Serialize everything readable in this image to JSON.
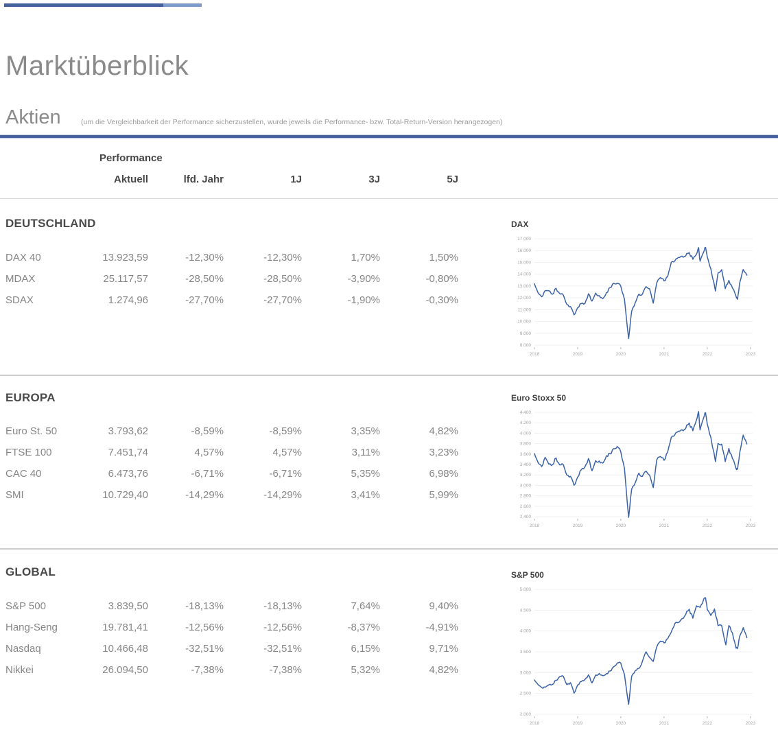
{
  "header": {
    "title": "Marktüberblick",
    "section_title": "Aktien",
    "section_note": "(um die Vergleichbarkeit der Performance sicherzustellen, wurde jeweils die Performance- bzw. Total-Return-Version herangezogen)"
  },
  "table": {
    "group_label": "Performance",
    "columns": [
      "Aktuell",
      "lfd. Jahr",
      "1J",
      "3J",
      "5J"
    ],
    "sections": [
      {
        "title": "DEUTSCHLAND",
        "rows": [
          {
            "name": "DAX 40",
            "values": [
              "13.923,59",
              "-12,30%",
              "-12,30%",
              "1,70%",
              "1,50%"
            ]
          },
          {
            "name": "MDAX",
            "values": [
              "25.117,57",
              "-28,50%",
              "-28,50%",
              "-3,90%",
              "-0,80%"
            ]
          },
          {
            "name": "SDAX",
            "values": [
              "1.274,96",
              "-27,70%",
              "-27,70%",
              "-1,90%",
              "-0,30%"
            ]
          }
        ]
      },
      {
        "title": "EUROPA",
        "rows": [
          {
            "name": "Euro St. 50",
            "values": [
              "3.793,62",
              "-8,59%",
              "-8,59%",
              "3,35%",
              "4,82%"
            ]
          },
          {
            "name": "FTSE 100",
            "values": [
              "7.451,74",
              "4,57%",
              "4,57%",
              "3,11%",
              "3,23%"
            ]
          },
          {
            "name": "CAC 40",
            "values": [
              "6.473,76",
              "-6,71%",
              "-6,71%",
              "5,35%",
              "6,98%"
            ]
          },
          {
            "name": "SMI",
            "values": [
              "10.729,40",
              "-14,29%",
              "-14,29%",
              "3,41%",
              "5,99%"
            ]
          }
        ]
      },
      {
        "title": "GLOBAL",
        "rows": [
          {
            "name": "S&P 500",
            "values": [
              "3.839,50",
              "-18,13%",
              "-18,13%",
              "7,64%",
              "9,40%"
            ]
          },
          {
            "name": "Hang-Seng",
            "values": [
              "19.781,41",
              "-12,56%",
              "-12,56%",
              "-8,37%",
              "-4,91%"
            ]
          },
          {
            "name": "Nasdaq",
            "values": [
              "10.466,48",
              "-32,51%",
              "-32,51%",
              "6,15%",
              "9,71%"
            ]
          },
          {
            "name": "Nikkei",
            "values": [
              "26.094,50",
              "-7,38%",
              "-7,38%",
              "5,32%",
              "4,82%"
            ]
          }
        ]
      }
    ]
  },
  "colors": {
    "accent_blue": "#44619e",
    "accent_blue_light": "#7e9ac8",
    "chart_line": "#3a62a8",
    "grid": "#f0f0f0",
    "tick_text": "#a3a3a3"
  },
  "chart_data": [
    {
      "type": "line",
      "title": "DAX",
      "xlim": [
        2018,
        2023.05
      ],
      "ylim": [
        8000,
        17000
      ],
      "xtick_values": [
        2018,
        2019,
        2020,
        2021,
        2022,
        2023
      ],
      "xtick_labels": [
        "2018",
        "2019",
        "2020",
        "2021",
        "2022",
        "2023"
      ],
      "ytick_values": [
        17000,
        16000,
        15000,
        14000,
        13000,
        12000,
        11000,
        10000,
        9000,
        8000
      ],
      "ytick_labels": [
        "17.000",
        "16.000",
        "15.000",
        "14.000",
        "13.000",
        "12.000",
        "11.000",
        "10.000",
        "9.000",
        "8.000"
      ],
      "texture": 0.008,
      "series": [
        {
          "name": "DAX",
          "color": "#3a62a8",
          "points": [
            [
              2018.0,
              13190
            ],
            [
              2018.083,
              12436
            ],
            [
              2018.167,
              12096
            ],
            [
              2018.25,
              12612
            ],
            [
              2018.333,
              12604
            ],
            [
              2018.417,
              12306
            ],
            [
              2018.5,
              12805
            ],
            [
              2018.583,
              12364
            ],
            [
              2018.667,
              12247
            ],
            [
              2018.75,
              11447
            ],
            [
              2018.833,
              11257
            ],
            [
              2018.917,
              10559
            ],
            [
              2019.0,
              11173
            ],
            [
              2019.083,
              11515
            ],
            [
              2019.167,
              11526
            ],
            [
              2019.25,
              12344
            ],
            [
              2019.333,
              11727
            ],
            [
              2019.417,
              12399
            ],
            [
              2019.5,
              12189
            ],
            [
              2019.583,
              11939
            ],
            [
              2019.667,
              12428
            ],
            [
              2019.75,
              12867
            ],
            [
              2019.833,
              13236
            ],
            [
              2019.917,
              13249
            ],
            [
              2020.0,
              12982
            ],
            [
              2020.083,
              11890
            ],
            [
              2020.18,
              8560
            ],
            [
              2020.25,
              10862
            ],
            [
              2020.333,
              11587
            ],
            [
              2020.417,
              12311
            ],
            [
              2020.5,
              12313
            ],
            [
              2020.583,
              12945
            ],
            [
              2020.667,
              12761
            ],
            [
              2020.75,
              11556
            ],
            [
              2020.833,
              13291
            ],
            [
              2020.917,
              13719
            ],
            [
              2021.0,
              13433
            ],
            [
              2021.083,
              13786
            ],
            [
              2021.167,
              15008
            ],
            [
              2021.25,
              15136
            ],
            [
              2021.333,
              15421
            ],
            [
              2021.417,
              15531
            ],
            [
              2021.5,
              15544
            ],
            [
              2021.583,
              15835
            ],
            [
              2021.667,
              15261
            ],
            [
              2021.75,
              15689
            ],
            [
              2021.8,
              16251
            ],
            [
              2021.833,
              15100
            ],
            [
              2021.917,
              15885
            ],
            [
              2021.96,
              16271
            ],
            [
              2022.0,
              15471
            ],
            [
              2022.083,
              14461
            ],
            [
              2022.19,
              12581
            ],
            [
              2022.25,
              14098
            ],
            [
              2022.333,
              14388
            ],
            [
              2022.417,
              12784
            ],
            [
              2022.5,
              13484
            ],
            [
              2022.583,
              12835
            ],
            [
              2022.667,
              12114
            ],
            [
              2022.7,
              11880
            ],
            [
              2022.75,
              13254
            ],
            [
              2022.833,
              14397
            ],
            [
              2022.917,
              13924
            ]
          ]
        }
      ]
    },
    {
      "type": "line",
      "title": "Euro Stoxx 50",
      "xlim": [
        2018,
        2023.05
      ],
      "ylim": [
        2400,
        4400
      ],
      "xtick_values": [
        2018,
        2019,
        2020,
        2021,
        2022,
        2023
      ],
      "xtick_labels": [
        "2018",
        "2019",
        "2020",
        "2021",
        "2022",
        "2023"
      ],
      "ytick_values": [
        4400,
        4200,
        4000,
        3800,
        3600,
        3400,
        3200,
        3000,
        2800,
        2600,
        2400
      ],
      "ytick_labels": [
        "4.400",
        "4.200",
        "4.000",
        "3.800",
        "3.600",
        "3.400",
        "3.200",
        "3.000",
        "2.800",
        "2.600",
        "2.400"
      ],
      "texture": 0.008,
      "series": [
        {
          "name": "Euro Stoxx 50",
          "color": "#3a62a8",
          "points": [
            [
              2018.0,
              3609
            ],
            [
              2018.083,
              3439
            ],
            [
              2018.167,
              3362
            ],
            [
              2018.25,
              3537
            ],
            [
              2018.333,
              3407
            ],
            [
              2018.417,
              3396
            ],
            [
              2018.5,
              3525
            ],
            [
              2018.583,
              3393
            ],
            [
              2018.667,
              3399
            ],
            [
              2018.75,
              3198
            ],
            [
              2018.833,
              3173
            ],
            [
              2018.917,
              3001
            ],
            [
              2019.0,
              3160
            ],
            [
              2019.083,
              3298
            ],
            [
              2019.167,
              3352
            ],
            [
              2019.25,
              3515
            ],
            [
              2019.333,
              3280
            ],
            [
              2019.417,
              3474
            ],
            [
              2019.5,
              3467
            ],
            [
              2019.583,
              3427
            ],
            [
              2019.667,
              3569
            ],
            [
              2019.75,
              3604
            ],
            [
              2019.833,
              3704
            ],
            [
              2019.917,
              3745
            ],
            [
              2020.0,
              3641
            ],
            [
              2020.083,
              3329
            ],
            [
              2020.18,
              2386
            ],
            [
              2020.25,
              2928
            ],
            [
              2020.333,
              3050
            ],
            [
              2020.417,
              3234
            ],
            [
              2020.5,
              3174
            ],
            [
              2020.583,
              3273
            ],
            [
              2020.667,
              3193
            ],
            [
              2020.75,
              2958
            ],
            [
              2020.833,
              3493
            ],
            [
              2020.917,
              3553
            ],
            [
              2021.0,
              3481
            ],
            [
              2021.083,
              3636
            ],
            [
              2021.167,
              3919
            ],
            [
              2021.25,
              3974
            ],
            [
              2021.333,
              4039
            ],
            [
              2021.417,
              4064
            ],
            [
              2021.5,
              4089
            ],
            [
              2021.583,
              4196
            ],
            [
              2021.667,
              4048
            ],
            [
              2021.75,
              4251
            ],
            [
              2021.8,
              4415
            ],
            [
              2021.833,
              4063
            ],
            [
              2021.917,
              4298
            ],
            [
              2021.96,
              4392
            ],
            [
              2022.0,
              4175
            ],
            [
              2022.083,
              3924
            ],
            [
              2022.19,
              3455
            ],
            [
              2022.25,
              3803
            ],
            [
              2022.333,
              3789
            ],
            [
              2022.417,
              3455
            ],
            [
              2022.5,
              3708
            ],
            [
              2022.583,
              3517
            ],
            [
              2022.667,
              3318
            ],
            [
              2022.7,
              3310
            ],
            [
              2022.75,
              3618
            ],
            [
              2022.833,
              3965
            ],
            [
              2022.917,
              3794
            ]
          ]
        }
      ]
    },
    {
      "type": "line",
      "title": "S&P 500",
      "xlim": [
        2018,
        2023.05
      ],
      "ylim": [
        2000,
        5000
      ],
      "xtick_values": [
        2018,
        2019,
        2020,
        2021,
        2022,
        2023
      ],
      "xtick_labels": [
        "2018",
        "2019",
        "2020",
        "2021",
        "2022",
        "2023"
      ],
      "ytick_values": [
        5000,
        4500,
        4000,
        3500,
        3000,
        2500,
        2000
      ],
      "ytick_labels": [
        "5.000",
        "4.500",
        "4.000",
        "3.500",
        "3.000",
        "2.500",
        "2.000"
      ],
      "texture": 0.008,
      "series": [
        {
          "name": "S&P 500",
          "color": "#3a62a8",
          "points": [
            [
              2018.0,
              2824
            ],
            [
              2018.083,
              2714
            ],
            [
              2018.167,
              2641
            ],
            [
              2018.25,
              2648
            ],
            [
              2018.333,
              2705
            ],
            [
              2018.417,
              2718
            ],
            [
              2018.5,
              2816
            ],
            [
              2018.583,
              2902
            ],
            [
              2018.667,
              2914
            ],
            [
              2018.75,
              2712
            ],
            [
              2018.833,
              2760
            ],
            [
              2018.917,
              2507
            ],
            [
              2019.0,
              2704
            ],
            [
              2019.083,
              2784
            ],
            [
              2019.167,
              2834
            ],
            [
              2019.25,
              2946
            ],
            [
              2019.333,
              2752
            ],
            [
              2019.417,
              2942
            ],
            [
              2019.5,
              2980
            ],
            [
              2019.583,
              2926
            ],
            [
              2019.667,
              2977
            ],
            [
              2019.75,
              3038
            ],
            [
              2019.833,
              3141
            ],
            [
              2019.917,
              3231
            ],
            [
              2020.0,
              3226
            ],
            [
              2020.083,
              2954
            ],
            [
              2020.18,
              2237
            ],
            [
              2020.25,
              2912
            ],
            [
              2020.333,
              3044
            ],
            [
              2020.417,
              3100
            ],
            [
              2020.5,
              3271
            ],
            [
              2020.583,
              3500
            ],
            [
              2020.667,
              3363
            ],
            [
              2020.75,
              3270
            ],
            [
              2020.833,
              3622
            ],
            [
              2020.917,
              3756
            ],
            [
              2021.0,
              3714
            ],
            [
              2021.083,
              3811
            ],
            [
              2021.167,
              3973
            ],
            [
              2021.25,
              4181
            ],
            [
              2021.333,
              4204
            ],
            [
              2021.417,
              4298
            ],
            [
              2021.5,
              4395
            ],
            [
              2021.583,
              4523
            ],
            [
              2021.667,
              4308
            ],
            [
              2021.75,
              4605
            ],
            [
              2021.833,
              4567
            ],
            [
              2021.917,
              4766
            ],
            [
              2021.96,
              4797
            ],
            [
              2022.0,
              4516
            ],
            [
              2022.083,
              4374
            ],
            [
              2022.167,
              4530
            ],
            [
              2022.25,
              4132
            ],
            [
              2022.333,
              4132
            ],
            [
              2022.43,
              3667
            ],
            [
              2022.5,
              4130
            ],
            [
              2022.583,
              3955
            ],
            [
              2022.667,
              3586
            ],
            [
              2022.7,
              3577
            ],
            [
              2022.75,
              3872
            ],
            [
              2022.833,
              4080
            ],
            [
              2022.917,
              3840
            ]
          ]
        }
      ]
    }
  ]
}
